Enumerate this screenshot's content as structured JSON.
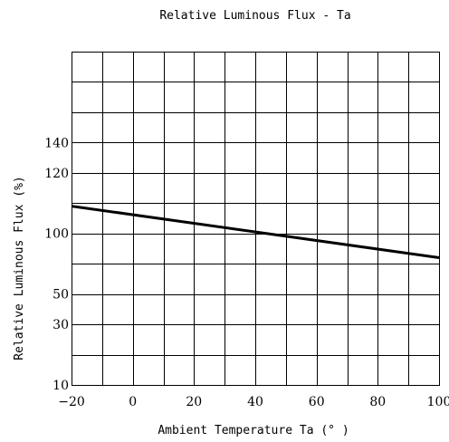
{
  "chart_data": {
    "type": "line",
    "title": "Relative Luminous Flux - Ta",
    "xlabel": "Ambient Temperature Ta (° )",
    "ylabel": "Relative Luminous Flux (%)",
    "x_ticks": [
      {
        "value": -20,
        "label": "−20"
      },
      {
        "value": 0,
        "label": "0"
      },
      {
        "value": 20,
        "label": "20"
      },
      {
        "value": 40,
        "label": "40"
      },
      {
        "value": 60,
        "label": "60"
      },
      {
        "value": 80,
        "label": "80"
      },
      {
        "value": 100,
        "label": "100"
      }
    ],
    "xlim": [
      -20,
      100
    ],
    "x_grid_step": 10,
    "y_ticks": [
      {
        "label": "140",
        "row": 3
      },
      {
        "label": "120",
        "row": 4
      },
      {
        "label": "100",
        "row": 6
      },
      {
        "label": "50",
        "row": 8
      },
      {
        "label": "30",
        "row": 9
      },
      {
        "label": "10",
        "row": 11
      }
    ],
    "y_rows": 11,
    "grid": true,
    "series": [
      {
        "x": [
          -20,
          100
        ],
        "y_row": [
          5.1,
          6.8
        ]
      }
    ]
  }
}
